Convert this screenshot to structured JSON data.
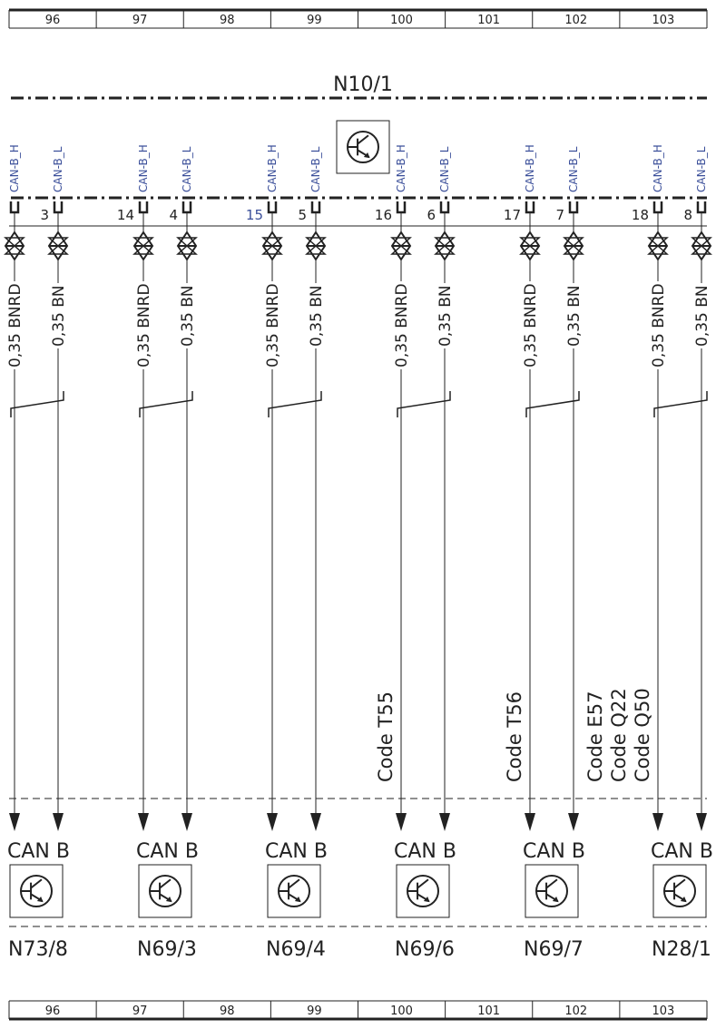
{
  "ruler": {
    "cells": [
      "96",
      "97",
      "98",
      "99",
      "100",
      "101",
      "102",
      "103"
    ]
  },
  "connector": {
    "title": "N10/1",
    "icon": "transistor-icon"
  },
  "groups": [
    {
      "h_pin": "",
      "l_pin": "3",
      "h_signal": "CAN-B_H",
      "l_signal": "CAN-B_L",
      "h_wire": "0,35 BNRD",
      "l_wire": "0,35 BN",
      "bus_label": "CAN B",
      "module": "N73/8",
      "code": []
    },
    {
      "h_pin": "14",
      "l_pin": "4",
      "h_signal": "CAN-B_H",
      "l_signal": "CAN-B_L",
      "h_wire": "0,35 BNRD",
      "l_wire": "0,35 BN",
      "bus_label": "CAN B",
      "module": "N69/3",
      "code": []
    },
    {
      "h_pin": "15",
      "l_pin": "5",
      "h_signal": "CAN-B_H",
      "l_signal": "CAN-B_L",
      "h_wire": "0,35 BNRD",
      "l_wire": "0,35 BN",
      "bus_label": "CAN B",
      "module": "N69/4",
      "code": [],
      "h_pin_highlight": true
    },
    {
      "h_pin": "16",
      "l_pin": "6",
      "h_signal": "CAN-B_H",
      "l_signal": "CAN-B_L",
      "h_wire": "0,35 BNRD",
      "l_wire": "0,35 BN",
      "bus_label": "CAN B",
      "module": "N69/6",
      "code": [
        "Code T55"
      ]
    },
    {
      "h_pin": "17",
      "l_pin": "7",
      "h_signal": "CAN-B_H",
      "l_signal": "CAN-B_L",
      "h_wire": "0,35 BNRD",
      "l_wire": "0,35 BN",
      "bus_label": "CAN B",
      "module": "N69/7",
      "code": [
        "Code T56"
      ]
    },
    {
      "h_pin": "18",
      "l_pin": "8",
      "h_signal": "CAN-B_H",
      "l_signal": "CAN-B_L",
      "h_wire": "0,35 BNRD",
      "l_wire": "0,35 BN",
      "bus_label": "CAN B",
      "module": "N28/1",
      "code": [
        "Code E57",
        "Code Q22",
        "Code Q50"
      ]
    }
  ],
  "colors": {
    "ink": "#222222",
    "signal": "#3b4f9a",
    "background": "#ffffff"
  }
}
